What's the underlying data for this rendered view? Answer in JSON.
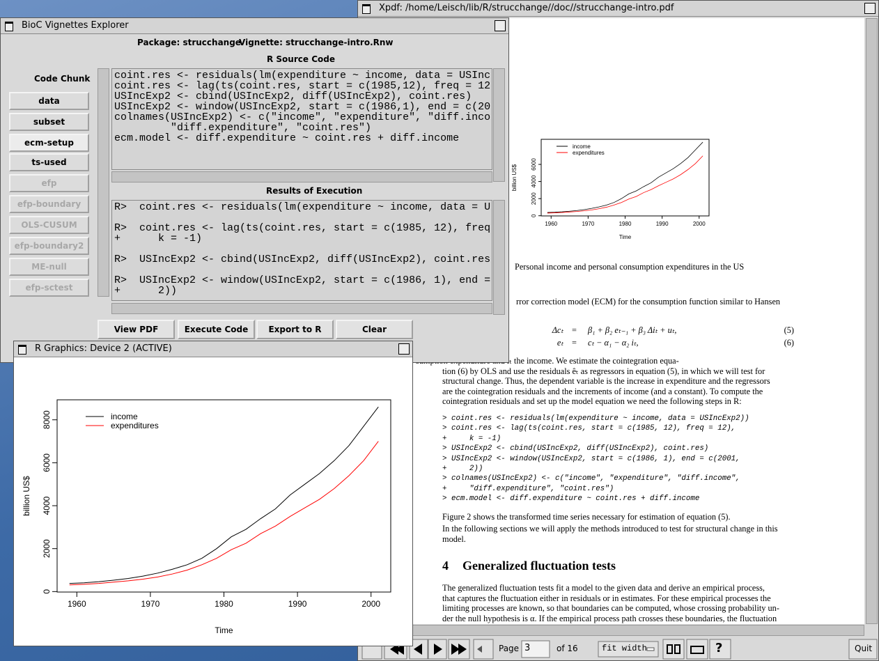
{
  "xpdf": {
    "title": "Xpdf: /home/Leisch/lib/R/strucchange//doc//strucchange-intro.pdf",
    "caption": "Personal income and personal consumption expenditures in the US",
    "text_line": "rror correction model (ECM) for the consumption function similar to Hansen",
    "equations": [
      {
        "lhs": "Δcₜ",
        "eq": "=",
        "rhs": "β₁ + β₂ eₜ₋₁ + β₃ Δiₜ + uₜ,",
        "number": "(5)"
      },
      {
        "lhs": "eₜ",
        "eq": "=",
        "rhs": "cₜ − α₁ − α₂ iₜ,",
        "number": "(6)"
      }
    ],
    "paragraph": [
      "sumption expenditure and iₜ the income. We estimate the cointegration equa-",
      "tion (6) by OLS and use the residuals êₜ as regressors in equation (5), in which we will test for",
      "structural change. Thus, the dependent variable is the increase in expenditure and the regressors",
      "are the cointegration residuals and the increments of income (and a constant). To compute the",
      "cointegration residuals and set up the model equation we need the following steps in R:"
    ],
    "code": [
      "> coint.res <- residuals(lm(expenditure ~ income, data = USIncExp2))",
      "> coint.res <- lag(ts(coint.res, start = c(1985, 12), freq = 12),",
      "+     k = -1)",
      "> USIncExp2 <- cbind(USIncExp2, diff(USIncExp2), coint.res)",
      "> USIncExp2 <- window(USIncExp2, start = c(1986, 1), end = c(2001,",
      "+     2))",
      "> colnames(USIncExp2) <- c(\"income\", \"expenditure\", \"diff.income\",",
      "+     \"diff.expenditure\", \"coint.res\")",
      "> ecm.model <- diff.expenditure ~ coint.res + diff.income"
    ],
    "figure_ref": "Figure 2 shows the transformed time series necessary for estimation of equation (5).",
    "following": [
      "In the following sections we will apply the methods introduced to test for structural change in this",
      "model."
    ],
    "section_number": "4",
    "section_title": "Generalized fluctuation tests",
    "section_text": [
      "The generalized fluctuation tests fit a model to the given data and derive an empirical process,",
      "that captures the fluctuation either in residuals or in estimates. For these empirical processes the",
      "limiting processes are known, so that boundaries can be computed, whose crossing probability un-",
      "der the null hypothesis is α. If the empirical process path crosses these boundaries, the fluctuation"
    ],
    "toolbar": {
      "page_label": "Page",
      "page_value": "3",
      "page_count": "of 16",
      "zoom": "fit width",
      "help": "?",
      "quit": "Quit"
    }
  },
  "explorer": {
    "title": "BioC Vignettes Explorer",
    "package": "Package: strucchange",
    "vignette": "Vignette: strucchange-intro.Rnw",
    "code_chunk_label": "Code Chunk",
    "chunks": [
      "data",
      "subset",
      "ecm-setup",
      "ts-used",
      "efp",
      "efp-boundary",
      "OLS-CUSUM",
      "efp-boundary2",
      "ME-null",
      "efp-sctest"
    ],
    "source_label": "R Source Code",
    "source": [
      "coint.res <- residuals(lm(expenditure ~ income, data = USInc",
      "coint.res <- lag(ts(coint.res, start = c(1985,12), freq = 12",
      "USIncExp2 <- cbind(USIncExp2, diff(USIncExp2), coint.res)",
      "USIncExp2 <- window(USIncExp2, start = c(1986,1), end = c(20",
      "colnames(USIncExp2) <- c(\"income\", \"expenditure\", \"diff.inco",
      "         \"diff.expenditure\", \"coint.res\")",
      "ecm.model <- diff.expenditure ~ coint.res + diff.income"
    ],
    "results_label": "Results of Execution",
    "results": [
      "R>  coint.res <- residuals(lm(expenditure ~ income, data = U",
      "R>  coint.res <- lag(ts(coint.res, start = c(1985, 12), freq",
      "+      k = -1)",
      "R>  USIncExp2 <- cbind(USIncExp2, diff(USIncExp2), coint.res",
      "R>  USIncExp2 <- window(USIncExp2, start = c(1986, 1), end =",
      "+      2))"
    ],
    "buttons": [
      "View PDF",
      "Execute Code",
      "Export to R",
      "Clear"
    ]
  },
  "graphics": {
    "title": "R Graphics: Device 2 (ACTIVE)",
    "plot": {
      "type": "line",
      "x": [
        1959,
        1961,
        1963,
        1965,
        1967,
        1969,
        1971,
        1973,
        1975,
        1977,
        1979,
        1981,
        1983,
        1985,
        1987,
        1989,
        1991,
        1993,
        1995,
        1997,
        1999,
        2001
      ],
      "series": [
        {
          "name": "income",
          "color": "#000000",
          "values": [
            380,
            410,
            460,
            530,
            610,
            720,
            860,
            1040,
            1250,
            1550,
            2000,
            2550,
            2900,
            3400,
            3850,
            4500,
            5000,
            5500,
            6100,
            6800,
            7700,
            8600
          ]
        },
        {
          "name": "expenditures",
          "color": "#ff0000",
          "values": [
            310,
            340,
            380,
            440,
            500,
            580,
            680,
            820,
            1000,
            1250,
            1550,
            1950,
            2250,
            2700,
            3050,
            3500,
            3900,
            4300,
            4800,
            5400,
            6100,
            7000
          ]
        }
      ],
      "xlim": [
        1957.32,
        2002.68
      ],
      "ylim": [
        -21.6,
        8931.6
      ],
      "xticks": [
        1960,
        1970,
        1980,
        1990,
        2000
      ],
      "yticks": [
        0,
        2000,
        4000,
        6000,
        8000
      ],
      "xlabel": "Time",
      "ylabel": "billion US$"
    },
    "thumbnail_yticks": [
      0,
      2000,
      4000,
      6000
    ]
  }
}
